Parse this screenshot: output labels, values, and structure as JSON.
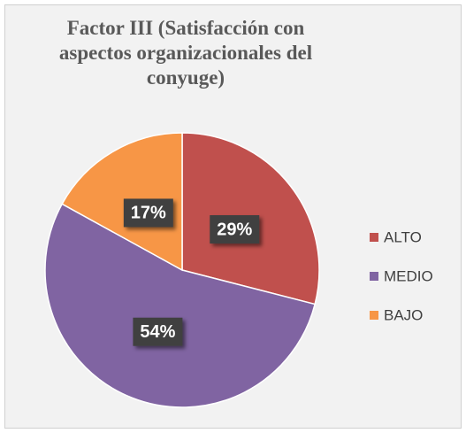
{
  "chart_data": {
    "type": "pie",
    "title": "Factor III (Satisfacción con aspectos organizacionales del conyuge)",
    "categories": [
      "ALTO",
      "MEDIO",
      "BAJO"
    ],
    "values": [
      29,
      54,
      17
    ],
    "value_labels": [
      "29%",
      "54%",
      "17%"
    ],
    "colors": [
      "#c0504d",
      "#8064a2",
      "#f79646"
    ],
    "legend": "right"
  }
}
